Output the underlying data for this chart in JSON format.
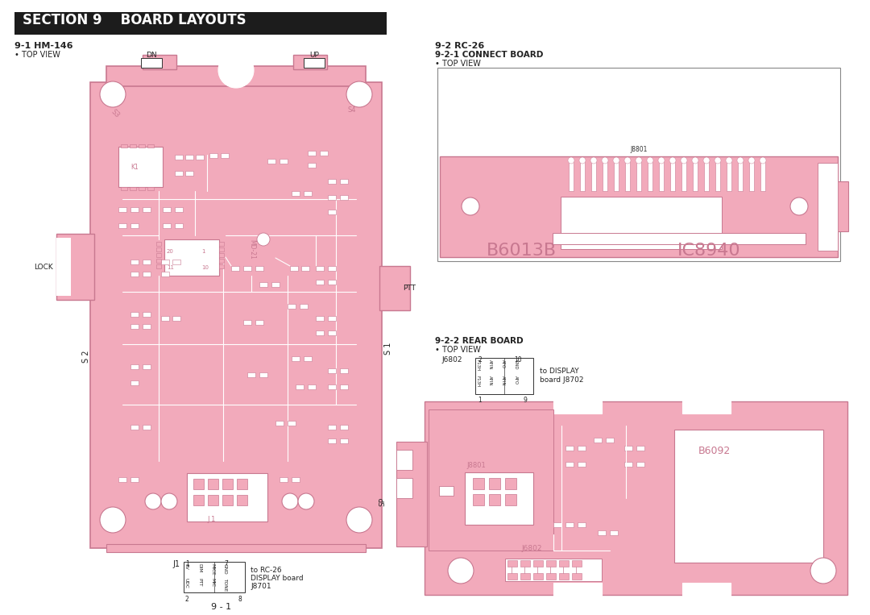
{
  "bg_color": "#ffffff",
  "header_bg": "#1c1c1c",
  "header_text": "SECTION 9    BOARD LAYOUTS",
  "header_text_color": "#ffffff",
  "pink_color": "#f2aabb",
  "pink_edge": "#c87890",
  "white": "#ffffff",
  "dark": "#333333",
  "text_dark": "#222222",
  "section_left_title": "9-1 HM-146",
  "section_left_sub": "• TOP VIEW",
  "dn_label": "DN",
  "up_label": "UP",
  "lock_label": "LOCK",
  "ptt_label": "PTT",
  "s2_label": "S 2",
  "s1_label": "S 1",
  "section_right_title": "9-2 RC-26",
  "connect_board_title": "9-2-1 CONNECT BOARD",
  "connect_board_sub": "• TOP VIEW",
  "rear_board_title": "9-2-2 REAR BOARD",
  "rear_board_sub": "• TOP VIEW",
  "b6013b": "B6013B",
  "ic8940": "IC8940",
  "b6092": "B6092",
  "j6802_label": "J6802",
  "j8801_label": "J8801",
  "j8802_label": "J6802",
  "j1_label": "J1",
  "sp_label": "SP",
  "to_display_1": "to DISPLAY",
  "to_display_2": "board J8702",
  "to_rc26_1": "to RC-26",
  "to_rc26_2": "DISPLAY board",
  "to_rc26_3": "J8701",
  "page_num": "9 - 1",
  "j6802_pins_top": [
    "2",
    "10"
  ],
  "j6802_pins_bot": [
    "1",
    "9"
  ],
  "j6802_rows_top": [
    "F13H",
    "AFIN",
    "AFO",
    "GND",
    "GND"
  ],
  "j6802_rows_bot": [
    "F13H",
    "AFIN",
    "AFIN",
    "AFO",
    "GND"
  ],
  "j1_pins_top": [
    "1",
    "7"
  ],
  "j1_pins_bot": [
    "2",
    "8"
  ],
  "j1_rows_top": [
    "8V",
    "DIM",
    "MICE",
    "GND"
  ],
  "j1_rows_bot": [
    "UDC",
    "PTT",
    "MIC",
    "TONE"
  ]
}
